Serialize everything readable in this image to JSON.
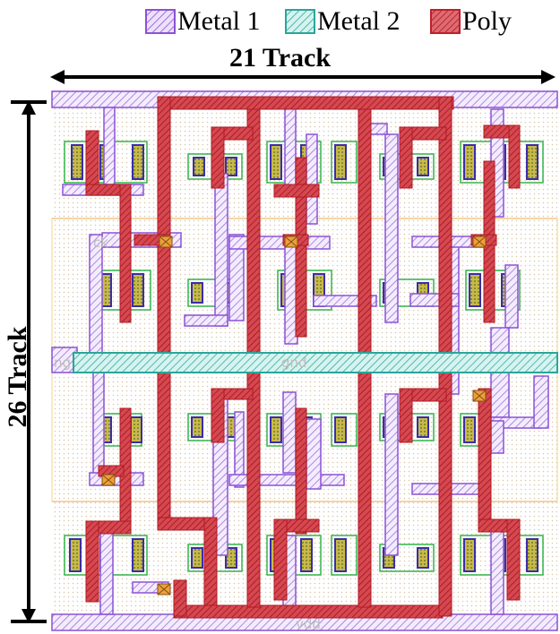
{
  "legend": [
    {
      "label": "Metal 1",
      "color": "#8b52d6",
      "fill": "#ece0fb"
    },
    {
      "label": "Metal 2",
      "color": "#2aa69a",
      "fill": "#d6f3ef"
    },
    {
      "label": "Poly",
      "color": "#c01f2a",
      "fill": "#e06a70"
    }
  ],
  "dimensions": {
    "width_label": "21 Track",
    "height_label": "26 Track"
  },
  "pins": {
    "top_rail": "vdd",
    "bottom_rail": "vdd",
    "middle_rail": "gnd",
    "left_stub": "ng",
    "clock": "ck"
  },
  "colors": {
    "diffusion": "#33b34a",
    "contact": "#3a2ea8",
    "well": "#f3a98a",
    "background_dots": "#d9c7a8"
  }
}
